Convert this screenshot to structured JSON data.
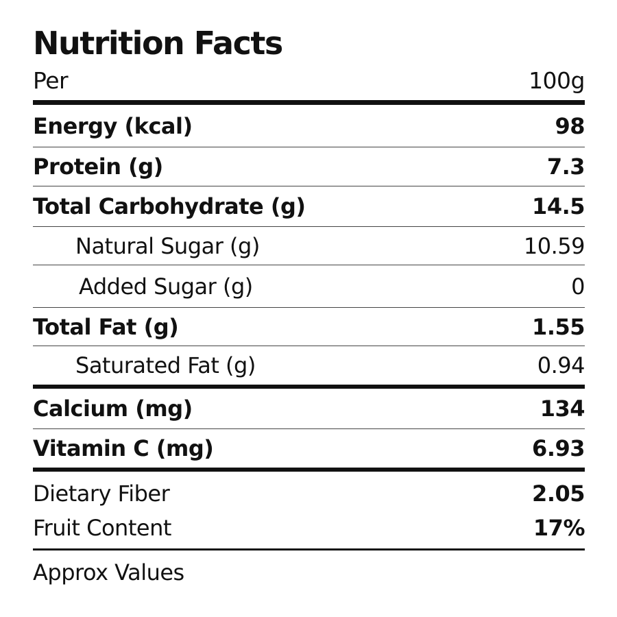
{
  "title": "Nutrition Facts",
  "serving": {
    "label": "Per",
    "value": "100g"
  },
  "nutrients": [
    {
      "label": "Energy (kcal)",
      "value": "98"
    },
    {
      "label": "Protein (g)",
      "value": "7.3"
    },
    {
      "label": "Total Carbohydrate (g)",
      "value": "14.5"
    },
    {
      "label": "Natural Sugar (g)",
      "value": "10.59"
    },
    {
      "label": "Added Sugar (g)",
      "value": "0"
    },
    {
      "label": "Total Fat (g)",
      "value": "1.55"
    },
    {
      "label": "Saturated Fat (g)",
      "value": "0.94"
    },
    {
      "label": "Calcium (mg)",
      "value": "134"
    },
    {
      "label": "Vitamin C (mg)",
      "value": "6.93"
    }
  ],
  "extras": [
    {
      "label": "Dietary Fiber",
      "value": "2.05"
    },
    {
      "label": "Fruit Content",
      "value": "17%"
    }
  ],
  "note": "Approx Values"
}
